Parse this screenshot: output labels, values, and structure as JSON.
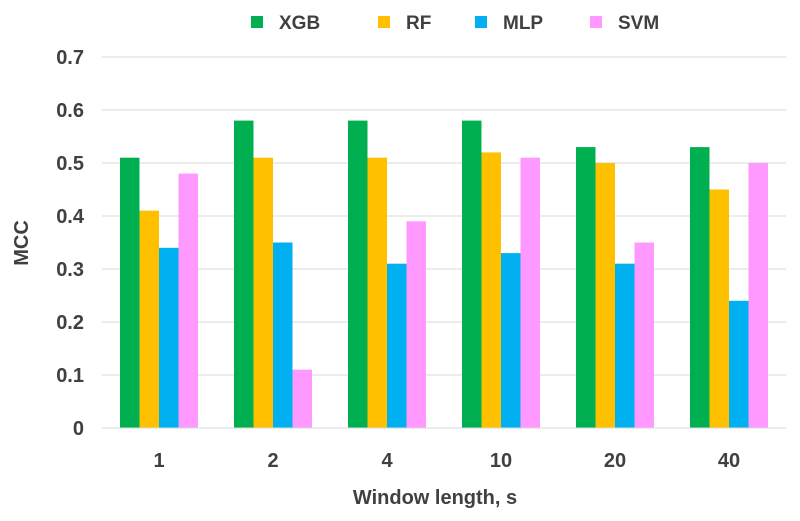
{
  "chart_data": {
    "type": "bar",
    "title": "",
    "xlabel": "Window length, s",
    "ylabel": "MCC",
    "categories": [
      "1",
      "2",
      "4",
      "10",
      "20",
      "40"
    ],
    "ylim": [
      0,
      0.7
    ],
    "yticks": [
      "0",
      "0.1",
      "0.2",
      "0.3",
      "0.4",
      "0.5",
      "0.6",
      "0.7"
    ],
    "grid": true,
    "legend_position": "top",
    "series": [
      {
        "name": "XGB",
        "color": "#00b050",
        "values": [
          0.51,
          0.58,
          0.58,
          0.58,
          0.53,
          0.53
        ]
      },
      {
        "name": "RF",
        "color": "#ffc000",
        "values": [
          0.41,
          0.51,
          0.51,
          0.52,
          0.5,
          0.45
        ]
      },
      {
        "name": "MLP",
        "color": "#00b0f0",
        "values": [
          0.34,
          0.35,
          0.31,
          0.33,
          0.31,
          0.24
        ]
      },
      {
        "name": "SVM",
        "color": "#ff99ff",
        "values": [
          0.48,
          0.11,
          0.39,
          0.51,
          0.35,
          0.5
        ]
      }
    ]
  }
}
